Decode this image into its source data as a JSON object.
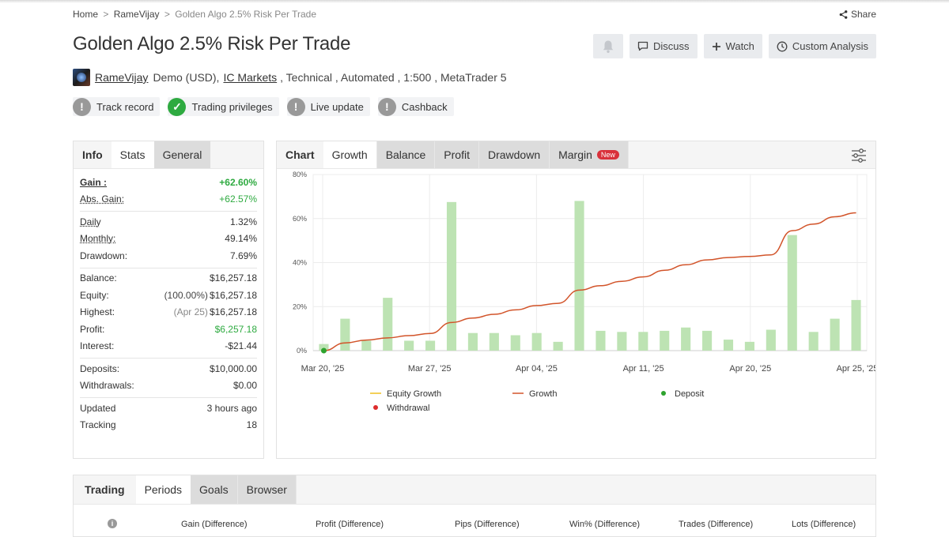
{
  "breadcrumb": {
    "home": "Home",
    "sep1": ">",
    "user": "RameVijay",
    "sep2": ">",
    "current": "Golden Algo 2.5% Risk Per Trade"
  },
  "share_label": "Share",
  "title": "Golden Algo 2.5% Risk Per Trade",
  "actions": {
    "discuss": "Discuss",
    "watch": "Watch",
    "custom": "Custom Analysis"
  },
  "meta": {
    "user": "RameVijay",
    "account": "Demo (USD),",
    "broker": "IC Markets",
    "rest": ", Technical , Automated , 1:500 , MetaTrader 5"
  },
  "badges": [
    {
      "label": "Track record",
      "icon": "!",
      "status": "warning"
    },
    {
      "label": "Trading privileges",
      "icon": "✓",
      "status": "verified"
    },
    {
      "label": "Live update",
      "icon": "!",
      "status": "warning"
    },
    {
      "label": "Cashback",
      "icon": "!",
      "status": "warning"
    }
  ],
  "left_tabs": {
    "info": "Info",
    "stats": "Stats",
    "general": "General"
  },
  "stats": {
    "gain_label": "Gain :",
    "gain": "+62.60%",
    "abs_gain_label": "Abs. Gain:",
    "abs_gain": "+62.57%",
    "daily_label": "Daily",
    "daily": "1.32%",
    "monthly_label": "Monthly:",
    "monthly": "49.14%",
    "drawdown_label": "Drawdown:",
    "drawdown": "7.69%",
    "balance_label": "Balance:",
    "balance": "$16,257.18",
    "equity_label": "Equity:",
    "equity_pct": "(100.00%)",
    "equity": "$16,257.18",
    "highest_label": "Highest:",
    "highest_date": "(Apr 25)",
    "highest": "$16,257.18",
    "profit_label": "Profit:",
    "profit": "$6,257.18",
    "interest_label": "Interest:",
    "interest": "-$21.44",
    "deposits_label": "Deposits:",
    "deposits": "$10,000.00",
    "withdrawals_label": "Withdrawals:",
    "withdrawals": "$0.00",
    "updated_label": "Updated",
    "updated": "3 hours ago",
    "tracking_label": "Tracking",
    "tracking": "18"
  },
  "chart_tabs": {
    "chart": "Chart",
    "growth": "Growth",
    "balance": "Balance",
    "profit": "Profit",
    "drawdown": "Drawdown",
    "margin": "Margin",
    "new_tag": "New"
  },
  "chart_data": {
    "type": "bar",
    "ylim": [
      0,
      80
    ],
    "yticks": [
      "0%",
      "20%",
      "40%",
      "60%",
      "80%"
    ],
    "xtick_labels": [
      "Mar 20, '25",
      "Mar 27, '25",
      "Apr 04, '25",
      "Apr 11, '25",
      "Apr 20, '25",
      "Apr 25, '25"
    ],
    "bars": [
      3,
      14.5,
      4.5,
      24,
      4.5,
      4.5,
      67.5,
      8,
      8,
      7,
      8,
      4,
      68,
      9,
      8.5,
      8.5,
      9,
      10.5,
      9,
      5,
      4,
      9.5,
      52.5,
      8.5,
      14.5,
      23
    ],
    "growth_line": [
      0,
      3.5,
      4.8,
      5.8,
      6.8,
      7.8,
      12.8,
      14.8,
      16.5,
      18.5,
      20.5,
      21.5,
      27.5,
      29.5,
      31.5,
      33.5,
      36.5,
      39,
      41.2,
      42.3,
      42.8,
      43.5,
      54.5,
      57.5,
      60.8,
      62.6
    ],
    "grid": true,
    "legend": [
      {
        "label": "Equity Growth",
        "color": "#f0c020",
        "kind": "line"
      },
      {
        "label": "Growth",
        "color": "#d2542a",
        "kind": "line"
      },
      {
        "label": "Deposit",
        "color": "#2ea32e",
        "kind": "dot"
      },
      {
        "label": "Withdrawal",
        "color": "#dd2c2c",
        "kind": "dot"
      }
    ],
    "legend_position": "bottom",
    "bar_color": "#bde3b3"
  },
  "bottom_tabs": {
    "trading": "Trading",
    "periods": "Periods",
    "goals": "Goals",
    "browser": "Browser"
  },
  "bottom_columns": [
    "Gain (Difference)",
    "Profit (Difference)",
    "Pips (Difference)",
    "Win% (Difference)",
    "Trades (Difference)",
    "Lots (Difference)"
  ],
  "info_icon": "i"
}
